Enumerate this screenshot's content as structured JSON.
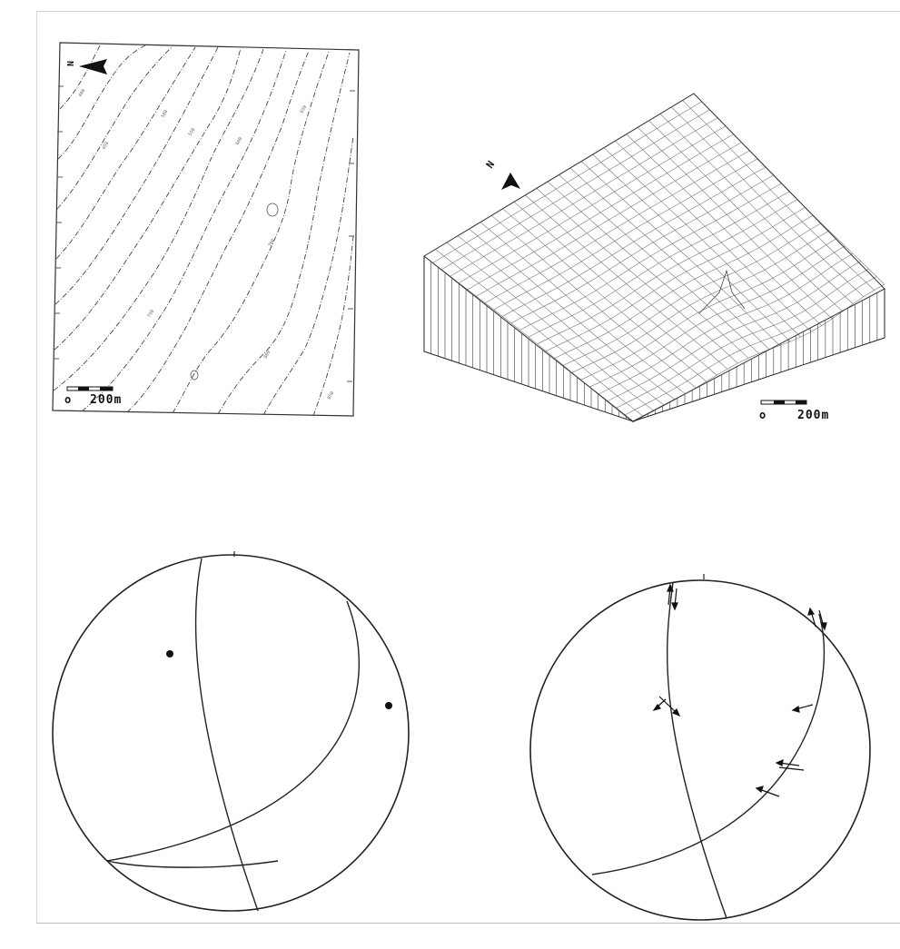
{
  "contour_map": {
    "north_label": "N",
    "scale": {
      "zero": "o",
      "distance": "200m"
    },
    "contour_labels": [
      "400",
      "450",
      "500",
      "550",
      "600",
      "650",
      "700",
      "750",
      "800",
      "850"
    ]
  },
  "block_diagram": {
    "north_label": "N",
    "scale": {
      "zero": "o",
      "distance": "200m"
    }
  },
  "stereonet_left": {
    "north_tick": true,
    "poles": 2,
    "great_circles": 2
  },
  "stereonet_right": {
    "north_tick": true,
    "great_circles": 2,
    "slip_arrows": 8
  }
}
